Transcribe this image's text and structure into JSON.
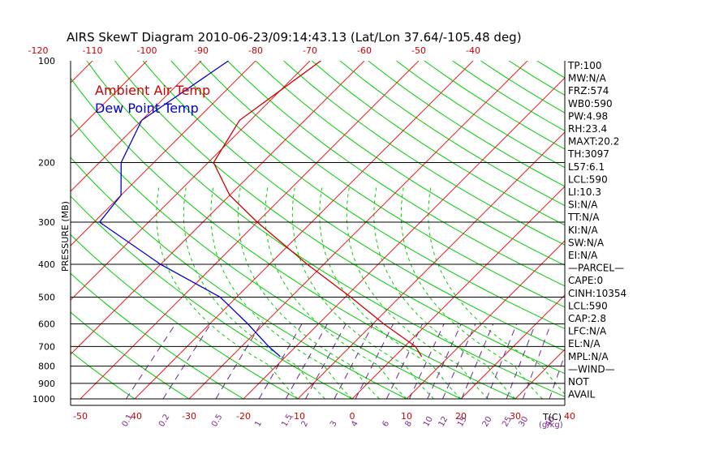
{
  "chart_data": {
    "type": "line",
    "title": "AIRS SkewT Diagram 2010-06-23/09:14:43.13 (Lat/Lon 37.64/-105.48 deg)",
    "ylabel": "PRESSURE (MB)",
    "xlabel": "T(C)",
    "mixing_ratio_unit": "(g/kg)",
    "ylim": [
      1000,
      100
    ],
    "xlim": [
      -50,
      40
    ],
    "y_scale": "log",
    "pressure_ticks": [
      100,
      200,
      300,
      400,
      500,
      600,
      700,
      800,
      900,
      1000
    ],
    "bottom_temp_ticks": [
      -50,
      -40,
      -30,
      -20,
      -10,
      0,
      10,
      20,
      30,
      40
    ],
    "top_temp_ticks": [
      -120,
      -110,
      -100,
      -90,
      -80,
      -70,
      -60,
      -50,
      -40
    ],
    "mixing_ratio_ticks": [
      "0.1",
      "0.2",
      "0.5",
      "1",
      "1.5",
      "2",
      "3",
      "4",
      "6",
      "8",
      "10",
      "12",
      "15",
      "20",
      "25",
      "30",
      "40"
    ],
    "legend_position": "top-left",
    "series": [
      {
        "name": "Ambient Air Temp",
        "color": "#cc0000",
        "points": [
          {
            "p": 100,
            "t": -68
          },
          {
            "p": 150,
            "t": -72
          },
          {
            "p": 200,
            "t": -69
          },
          {
            "p": 250,
            "t": -60
          },
          {
            "p": 300,
            "t": -50
          },
          {
            "p": 400,
            "t": -33
          },
          {
            "p": 500,
            "t": -19
          },
          {
            "p": 600,
            "t": -8
          },
          {
            "p": 700,
            "t": 2
          },
          {
            "p": 750,
            "t": 5
          }
        ]
      },
      {
        "name": "Dew Point Temp",
        "color": "#0000cc",
        "points": [
          {
            "p": 100,
            "t": -85
          },
          {
            "p": 150,
            "t": -90
          },
          {
            "p": 200,
            "t": -86
          },
          {
            "p": 250,
            "t": -80
          },
          {
            "p": 300,
            "t": -79
          },
          {
            "p": 400,
            "t": -60
          },
          {
            "p": 500,
            "t": -43
          },
          {
            "p": 600,
            "t": -33
          },
          {
            "p": 700,
            "t": -25
          },
          {
            "p": 750,
            "t": -21
          }
        ]
      }
    ],
    "background_lines": {
      "isotherms_color": "#cc0000",
      "adiabats_color": "#00cc00",
      "mixing_ratio_color": "#6a2a8a"
    }
  },
  "indices": [
    "TP:100",
    "MW:N/A",
    "FRZ:574",
    "WB0:590",
    "PW:4.98",
    "RH:23.4",
    "MAXT:20.2",
    "TH:3097",
    "L57:6.1",
    "LCL:590",
    "LI:10.3",
    "SI:N/A",
    "TT:N/A",
    "KI:N/A",
    "SW:N/A",
    "EI:N/A",
    "—PARCEL—",
    "CAPE:0",
    "CINH:10354",
    "LCL:590",
    "CAP:2.8",
    "LFC:N/A",
    "EL:N/A",
    "MPL:N/A",
    "—WIND—",
    "NOT",
    "AVAIL"
  ]
}
